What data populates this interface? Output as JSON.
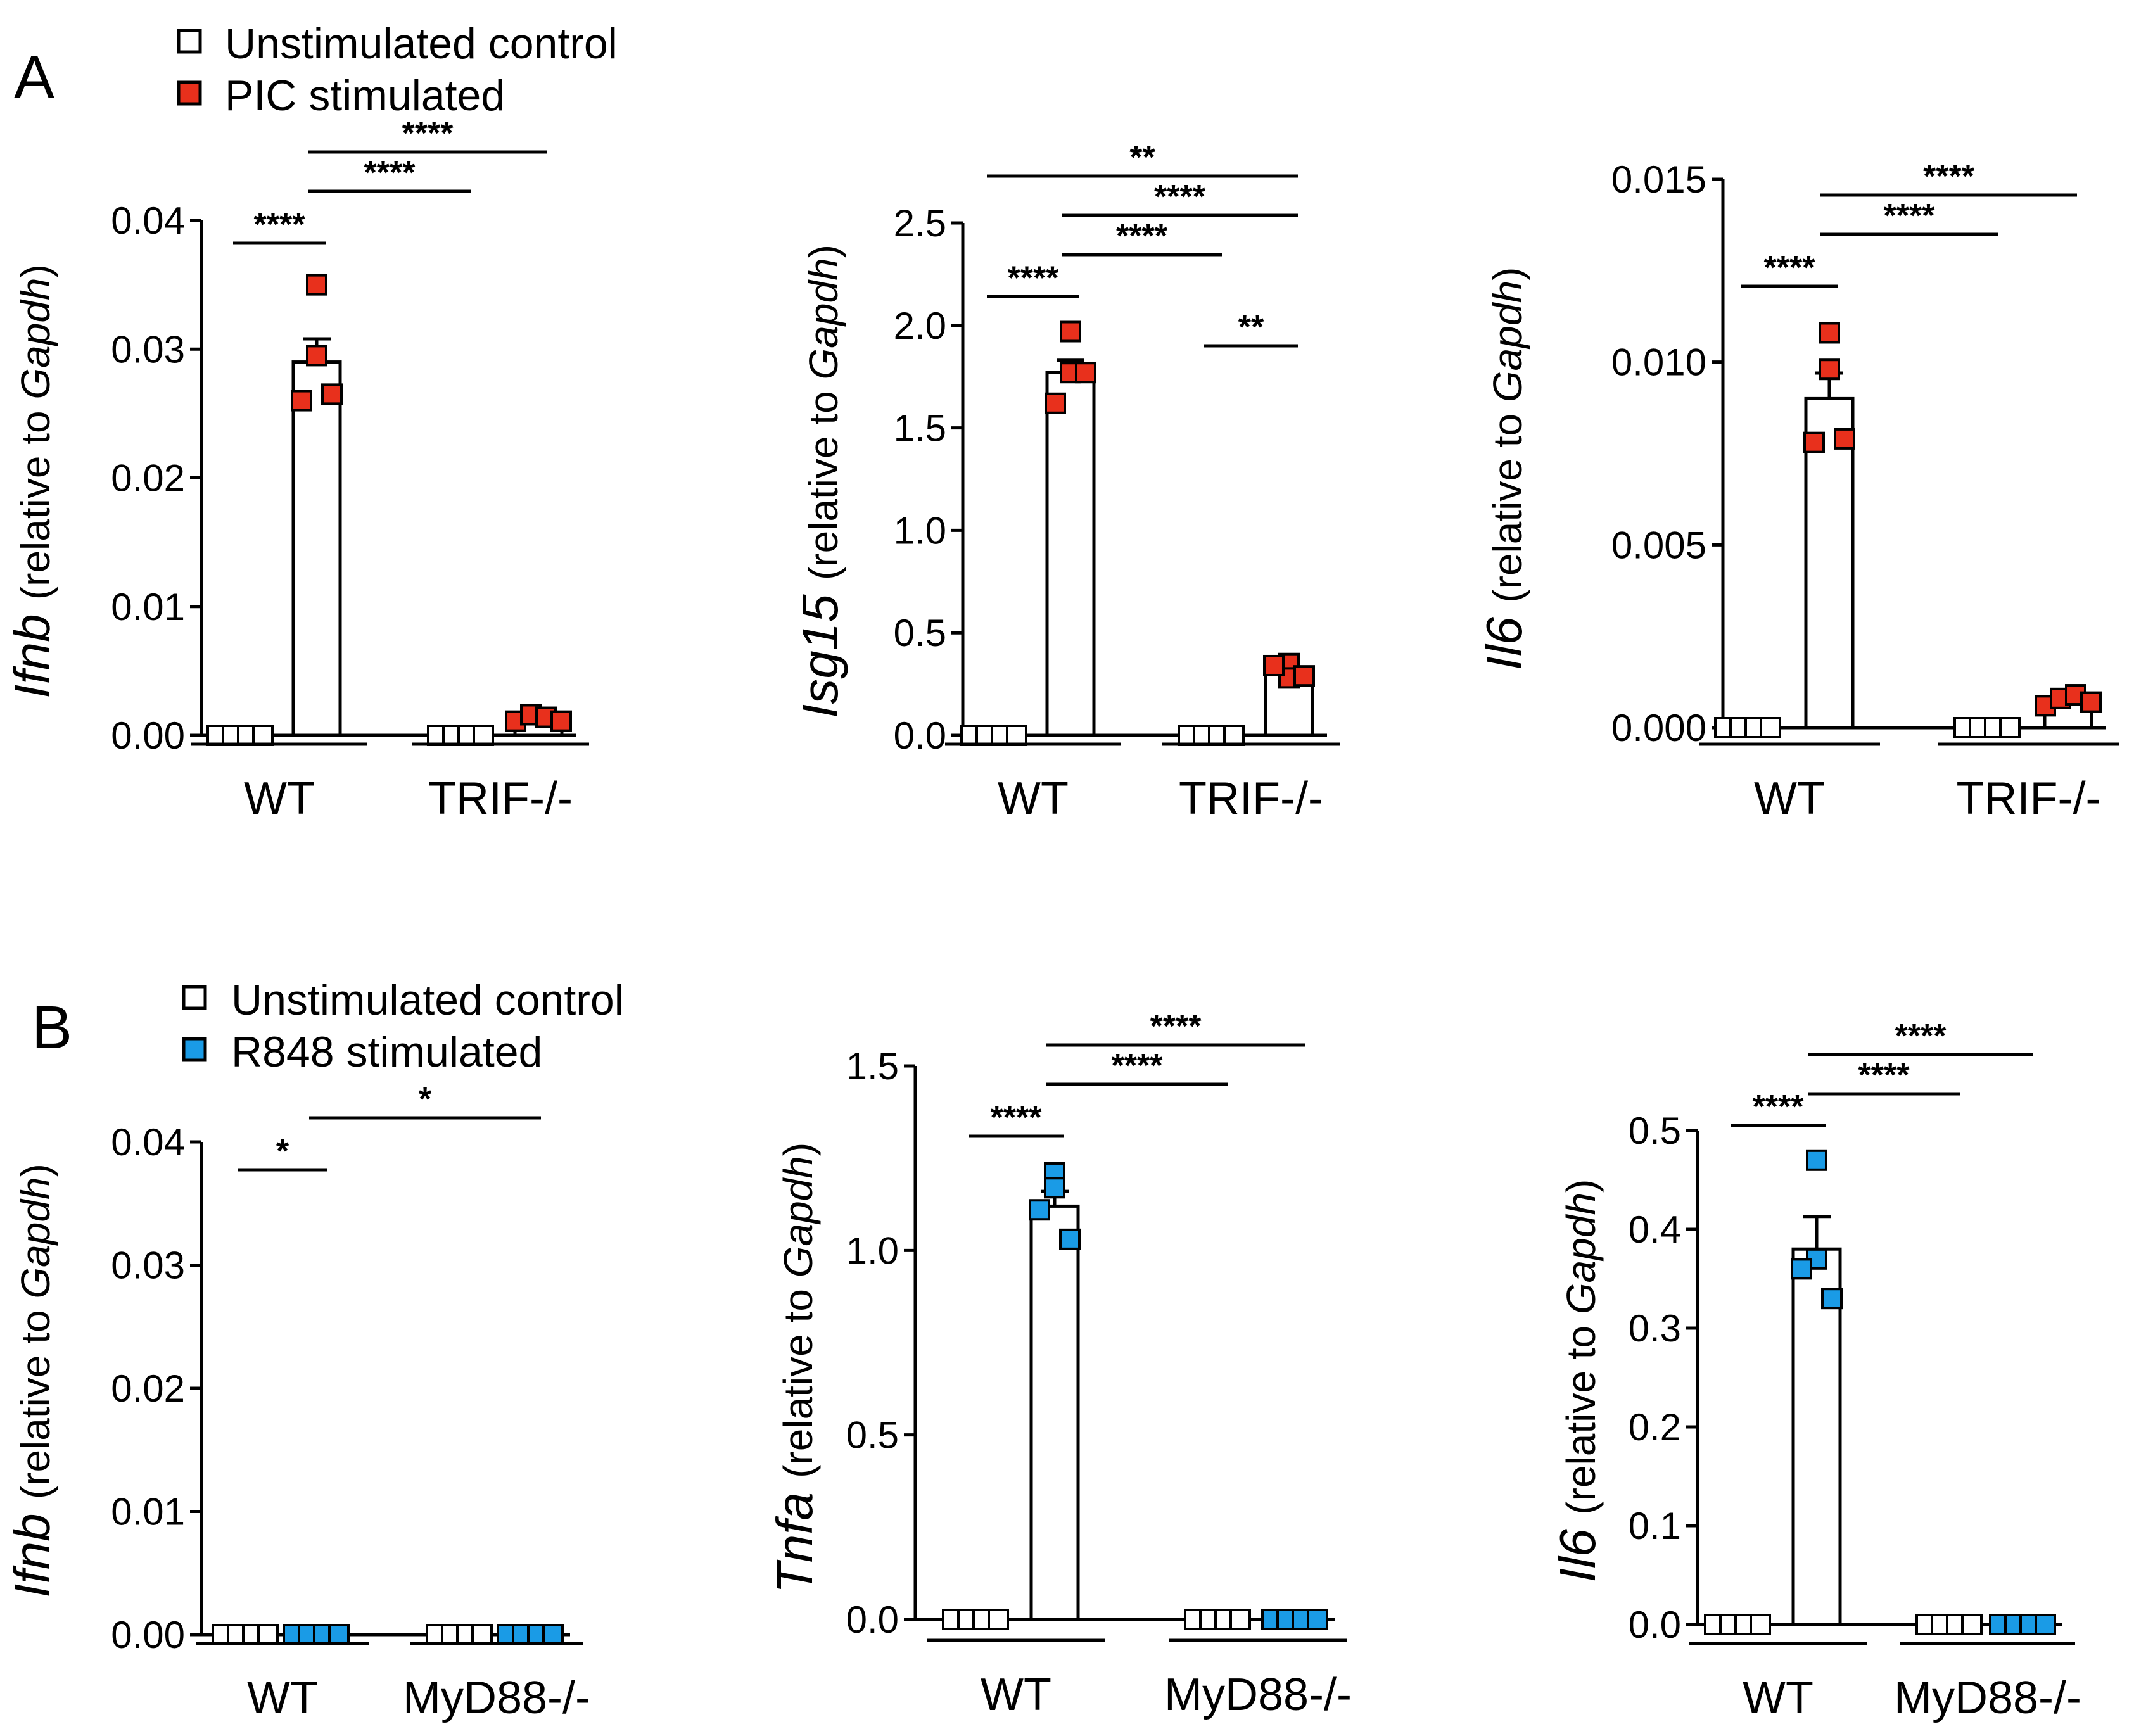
{
  "panels": [
    {
      "letter": "A",
      "legend": [
        {
          "label": "Unstimulated control",
          "color": "#ffffff"
        },
        {
          "label": "PIC stimulated",
          "color": "#e8301c"
        }
      ]
    },
    {
      "letter": "B",
      "legend": [
        {
          "label": "Unstimulated control",
          "color": "#ffffff"
        },
        {
          "label": "R848 stimulated",
          "color": "#1a9be6"
        }
      ]
    }
  ],
  "chart_data": [
    {
      "id": "A1",
      "type": "bar",
      "gene": "Ifnb",
      "ylabel_suffix": "(relative to",
      "ylabel_ref": "Gapdh",
      "ylabel_close": ")",
      "ylim": [
        0,
        0.04
      ],
      "ticks": [
        "0.00",
        "0.01",
        "0.02",
        "0.03",
        "0.04"
      ],
      "groups": [
        "WT",
        "TRIF-/-"
      ],
      "bars": [
        {
          "group": 0,
          "stim": false,
          "mean": 0.0,
          "sem": 0.0,
          "points": [
            0,
            0,
            0,
            0
          ]
        },
        {
          "group": 0,
          "stim": true,
          "mean": 0.029,
          "sem": 0.0018,
          "points": [
            0.035,
            0.0295,
            0.026,
            0.0265
          ]
        },
        {
          "group": 1,
          "stim": false,
          "mean": 0.0,
          "sem": 0.0,
          "points": [
            0,
            0,
            0,
            0
          ]
        },
        {
          "group": 1,
          "stim": true,
          "mean": 0.0013,
          "sem": 0.0003,
          "points": [
            0.0011,
            0.0016,
            0.0014,
            0.0011
          ]
        }
      ],
      "sig": [
        {
          "from": 0,
          "to": 1,
          "label": "****"
        },
        {
          "from": 1,
          "to": 2,
          "label": "****"
        },
        {
          "from": 1,
          "to": 3,
          "label": "****"
        }
      ],
      "stim_color": "#e8301c"
    },
    {
      "id": "A2",
      "type": "bar",
      "gene": "Isg15",
      "ylabel_suffix": "(relative to",
      "ylabel_ref": "Gapdh",
      "ylabel_close": ")",
      "ylim": [
        0,
        2.5
      ],
      "ticks": [
        "0.0",
        "0.5",
        "1.0",
        "1.5",
        "2.0",
        "2.5"
      ],
      "groups": [
        "WT",
        "TRIF-/-"
      ],
      "bars": [
        {
          "group": 0,
          "stim": false,
          "mean": 0.0,
          "sem": 0.0,
          "points": [
            0,
            0,
            0,
            0
          ]
        },
        {
          "group": 0,
          "stim": true,
          "mean": 1.77,
          "sem": 0.06,
          "points": [
            1.97,
            1.77,
            1.62,
            1.77
          ]
        },
        {
          "group": 1,
          "stim": false,
          "mean": 0.0,
          "sem": 0.0,
          "points": [
            0,
            0,
            0,
            0
          ]
        },
        {
          "group": 1,
          "stim": true,
          "mean": 0.3,
          "sem": 0.02,
          "points": [
            0.35,
            0.28,
            0.34,
            0.29
          ]
        }
      ],
      "sig": [
        {
          "from": 0,
          "to": 1,
          "label": "****"
        },
        {
          "from": 2,
          "to": 3,
          "label": "**"
        },
        {
          "from": 1,
          "to": 2,
          "label": "****"
        },
        {
          "from": 1,
          "to": 3,
          "label": "****"
        },
        {
          "from": 0,
          "to": 3,
          "label": "**"
        }
      ],
      "stim_color": "#e8301c"
    },
    {
      "id": "A3",
      "type": "bar",
      "gene": "Il6",
      "ylabel_suffix": "(relative to",
      "ylabel_ref": "Gapdh",
      "ylabel_close": ")",
      "ylim": [
        0,
        0.015
      ],
      "ticks": [
        "0.000",
        "0.005",
        "0.010",
        "0.015"
      ],
      "groups": [
        "WT",
        "TRIF-/-"
      ],
      "bars": [
        {
          "group": 0,
          "stim": false,
          "mean": 0.0,
          "sem": 0.0,
          "points": [
            0,
            0,
            0,
            0
          ]
        },
        {
          "group": 0,
          "stim": true,
          "mean": 0.009,
          "sem": 0.0007,
          "points": [
            0.0108,
            0.0098,
            0.0078,
            0.0079
          ]
        },
        {
          "group": 1,
          "stim": false,
          "mean": 0.0,
          "sem": 0.0,
          "points": [
            0,
            0,
            0,
            0
          ]
        },
        {
          "group": 1,
          "stim": true,
          "mean": 0.0007,
          "sem": 0.0001,
          "points": [
            0.0006,
            0.0008,
            0.0009,
            0.0007
          ]
        }
      ],
      "sig": [
        {
          "from": 0,
          "to": 1,
          "label": "****"
        },
        {
          "from": 1,
          "to": 2,
          "label": "****"
        },
        {
          "from": 1,
          "to": 3,
          "label": "****"
        }
      ],
      "stim_color": "#e8301c"
    },
    {
      "id": "B1",
      "type": "bar",
      "gene": "Ifnb",
      "ylabel_suffix": "(relative to",
      "ylabel_ref": "Gapdh",
      "ylabel_close": ")",
      "ylim": [
        0,
        0.04
      ],
      "ticks": [
        "0.00",
        "0.01",
        "0.02",
        "0.03",
        "0.04"
      ],
      "groups": [
        "WT",
        "MyD88-/-"
      ],
      "bars": [
        {
          "group": 0,
          "stim": false,
          "mean": 0.0,
          "sem": 0.0,
          "points": [
            0,
            0,
            0,
            0
          ]
        },
        {
          "group": 0,
          "stim": true,
          "mean": 0.0,
          "sem": 0.0,
          "points": [
            0,
            0,
            0,
            0
          ]
        },
        {
          "group": 1,
          "stim": false,
          "mean": 0.0,
          "sem": 0.0,
          "points": [
            0,
            0,
            0,
            0
          ]
        },
        {
          "group": 1,
          "stim": true,
          "mean": 0.0,
          "sem": 0.0,
          "points": [
            0,
            0,
            0,
            0
          ]
        }
      ],
      "sig": [
        {
          "from": 0,
          "to": 1,
          "label": "*"
        },
        {
          "from": 1,
          "to": 3,
          "label": "*"
        }
      ],
      "stim_color": "#1a9be6"
    },
    {
      "id": "B2",
      "type": "bar",
      "gene": "Tnfa",
      "ylabel_suffix": "(relative to",
      "ylabel_ref": "Gapdh",
      "ylabel_close": ")",
      "ylim": [
        0,
        1.5
      ],
      "ticks": [
        "0.0",
        "0.5",
        "1.0",
        "1.5"
      ],
      "groups": [
        "WT",
        "MyD88-/-"
      ],
      "bars": [
        {
          "group": 0,
          "stim": false,
          "mean": 0.0,
          "sem": 0.0,
          "points": [
            0,
            0,
            0,
            0
          ]
        },
        {
          "group": 0,
          "stim": true,
          "mean": 1.12,
          "sem": 0.04,
          "points": [
            1.21,
            1.17,
            1.11,
            1.03
          ]
        },
        {
          "group": 1,
          "stim": false,
          "mean": 0.0,
          "sem": 0.0,
          "points": [
            0,
            0,
            0,
            0
          ]
        },
        {
          "group": 1,
          "stim": true,
          "mean": 0.0,
          "sem": 0.0,
          "points": [
            0,
            0,
            0,
            0
          ]
        }
      ],
      "sig": [
        {
          "from": 0,
          "to": 1,
          "label": "****"
        },
        {
          "from": 1,
          "to": 2,
          "label": "****"
        },
        {
          "from": 1,
          "to": 3,
          "label": "****"
        }
      ],
      "stim_color": "#1a9be6"
    },
    {
      "id": "B3",
      "type": "bar",
      "gene": "Il6",
      "ylabel_suffix": "(relative to",
      "ylabel_ref": "Gapdh",
      "ylabel_close": ")",
      "ylim": [
        0,
        0.5
      ],
      "ticks": [
        "0.0",
        "0.1",
        "0.2",
        "0.3",
        "0.4",
        "0.5"
      ],
      "groups": [
        "WT",
        "MyD88-/-"
      ],
      "bars": [
        {
          "group": 0,
          "stim": false,
          "mean": 0.0,
          "sem": 0.0,
          "points": [
            0,
            0,
            0,
            0
          ]
        },
        {
          "group": 0,
          "stim": true,
          "mean": 0.38,
          "sem": 0.033,
          "points": [
            0.47,
            0.37,
            0.36,
            0.33
          ]
        },
        {
          "group": 1,
          "stim": false,
          "mean": 0.0,
          "sem": 0.0,
          "points": [
            0,
            0,
            0,
            0
          ]
        },
        {
          "group": 1,
          "stim": true,
          "mean": 0.0,
          "sem": 0.0,
          "points": [
            0,
            0,
            0,
            0
          ]
        }
      ],
      "sig": [
        {
          "from": 0,
          "to": 1,
          "label": "****"
        },
        {
          "from": 1,
          "to": 2,
          "label": "****"
        },
        {
          "from": 1,
          "to": 3,
          "label": "****"
        }
      ],
      "stim_color": "#1a9be6"
    }
  ]
}
